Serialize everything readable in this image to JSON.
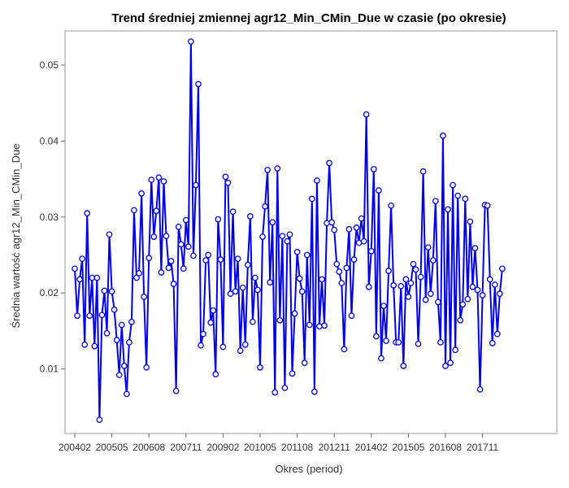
{
  "chart_data": {
    "type": "line",
    "title": "Trend średniej zmiennej agr12_Min_CMin_Due w czasie (po okresie)",
    "xlabel": "Okres (period)",
    "ylabel": "Średnia wartość agr12_Min_CMin_Due",
    "x_start": "2004-02",
    "x_ticks": [
      "200402",
      "200505",
      "200608",
      "200711",
      "200902",
      "201005",
      "201108",
      "201211",
      "201402",
      "201505",
      "201608",
      "201711"
    ],
    "y_ticks": [
      0.01,
      0.02,
      0.03,
      0.04,
      0.05
    ],
    "ylim": [
      0.0015,
      0.0545
    ],
    "grid": false,
    "line_color": "#0000ee",
    "series": [
      {
        "x": [
          "2004-02",
          "2004-03",
          "2004-04",
          "2004-05",
          "2004-06",
          "2004-07",
          "2004-08",
          "2004-09",
          "2004-10",
          "2004-11",
          "2004-12",
          "2005-01",
          "2005-02",
          "2005-03",
          "2005-04",
          "2005-05",
          "2005-06",
          "2005-07",
          "2005-08",
          "2005-09",
          "2005-10",
          "2005-11",
          "2005-12",
          "2006-01",
          "2006-02",
          "2006-03",
          "2006-04",
          "2006-05",
          "2006-06",
          "2006-07",
          "2006-08",
          "2006-09",
          "2006-10",
          "2006-11",
          "2006-12",
          "2007-01",
          "2007-02",
          "2007-03",
          "2007-04",
          "2007-05",
          "2007-06",
          "2007-07",
          "2007-08",
          "2007-09",
          "2007-10",
          "2007-11",
          "2007-12",
          "2008-01",
          "2008-02",
          "2008-03",
          "2008-04",
          "2008-05",
          "2008-06",
          "2008-07",
          "2008-08",
          "2008-09",
          "2008-10",
          "2008-11",
          "2008-12",
          "2009-01",
          "2009-02",
          "2009-03",
          "2009-04",
          "2009-05",
          "2009-06",
          "2009-07",
          "2009-08",
          "2009-09",
          "2009-10",
          "2009-11",
          "2009-12",
          "2010-01",
          "2010-02",
          "2010-03",
          "2010-04",
          "2010-05",
          "2010-06",
          "2010-07",
          "2010-08",
          "2010-09",
          "2010-10",
          "2010-11",
          "2010-12",
          "2011-01",
          "2011-02",
          "2011-03",
          "2011-04",
          "2011-05",
          "2011-06",
          "2011-07",
          "2011-08",
          "2011-09",
          "2011-10",
          "2011-11",
          "2011-12",
          "2012-01",
          "2012-02",
          "2012-03",
          "2012-04",
          "2012-05",
          "2012-06",
          "2012-07",
          "2012-08",
          "2012-09",
          "2012-10",
          "2012-11",
          "2012-12",
          "2013-01",
          "2013-02",
          "2013-03",
          "2013-04",
          "2013-05",
          "2013-06",
          "2013-07",
          "2013-08",
          "2013-09",
          "2013-10",
          "2013-11",
          "2013-12",
          "2014-01",
          "2014-02",
          "2014-03",
          "2014-04",
          "2014-05",
          "2014-06",
          "2014-07",
          "2014-08",
          "2014-09",
          "2014-10",
          "2014-11",
          "2014-12",
          "2015-01",
          "2015-02",
          "2015-03",
          "2015-04",
          "2015-05",
          "2015-06",
          "2015-07",
          "2015-08",
          "2015-09",
          "2015-10",
          "2015-11",
          "2015-12",
          "2016-01",
          "2016-02",
          "2016-03",
          "2016-04",
          "2016-05",
          "2016-06",
          "2016-07",
          "2016-08",
          "2016-09",
          "2016-10",
          "2016-11",
          "2016-12",
          "2017-01",
          "2017-02",
          "2017-03",
          "2017-04",
          "2017-05",
          "2017-06",
          "2017-07",
          "2017-08",
          "2017-09",
          "2017-10",
          "2017-11",
          "2017-12",
          "2018-01",
          "2018-02",
          "2018-03",
          "2018-04",
          "2018-05",
          "2018-06",
          "2018-07"
        ],
        "values": [
          0.0232,
          0.017,
          0.0218,
          0.0245,
          0.0132,
          0.0305,
          0.017,
          0.022,
          0.013,
          0.022,
          0.0033,
          0.0171,
          0.0203,
          0.0147,
          0.0277,
          0.0202,
          0.0178,
          0.0138,
          0.0092,
          0.0158,
          0.0104,
          0.0067,
          0.0135,
          0.0162,
          0.0309,
          0.022,
          0.0226,
          0.0331,
          0.0195,
          0.0102,
          0.0246,
          0.0349,
          0.0274,
          0.0308,
          0.0352,
          0.0227,
          0.0347,
          0.0275,
          0.0233,
          0.0242,
          0.0212,
          0.0071,
          0.0287,
          0.0264,
          0.0232,
          0.0296,
          0.0261,
          0.0531,
          0.0249,
          0.0342,
          0.0475,
          0.0131,
          0.0146,
          0.0243,
          0.025,
          0.0161,
          0.0177,
          0.0093,
          0.0297,
          0.0244,
          0.0129,
          0.0353,
          0.0345,
          0.0199,
          0.0307,
          0.0202,
          0.0245,
          0.0124,
          0.0207,
          0.0132,
          0.0237,
          0.0301,
          0.0162,
          0.022,
          0.0204,
          0.0102,
          0.0274,
          0.0314,
          0.0362,
          0.0214,
          0.0293,
          0.0069,
          0.0364,
          0.0164,
          0.0275,
          0.0075,
          0.0268,
          0.0277,
          0.0094,
          0.0173,
          0.0254,
          0.0219,
          0.0202,
          0.0108,
          0.025,
          0.0158,
          0.0324,
          0.007,
          0.0348,
          0.0156,
          0.0218,
          0.0157,
          0.0292,
          0.0371,
          0.0293,
          0.0283,
          0.0238,
          0.0228,
          0.0213,
          0.0126,
          0.0233,
          0.0284,
          0.017,
          0.0244,
          0.0286,
          0.0266,
          0.0298,
          0.0268,
          0.0435,
          0.0208,
          0.0255,
          0.0363,
          0.0143,
          0.0335,
          0.0114,
          0.0183,
          0.0137,
          0.0229,
          0.0315,
          0.021,
          0.0135,
          0.0135,
          0.0209,
          0.0104,
          0.0218,
          0.0195,
          0.0213,
          0.0238,
          0.0231,
          0.0133,
          0.0221,
          0.036,
          0.0191,
          0.026,
          0.0199,
          0.0243,
          0.0321,
          0.0188,
          0.0135,
          0.0407,
          0.0104,
          0.031,
          0.0108,
          0.0342,
          0.0125,
          0.0328,
          0.0164,
          0.0185,
          0.0324,
          0.0192,
          0.0294,
          0.0208,
          0.0259,
          0.0204,
          0.0073,
          0.0197,
          0.0316,
          0.0315,
          0.0218,
          0.0134,
          0.0211,
          0.0146,
          0.0199,
          0.0232
        ]
      }
    ]
  }
}
